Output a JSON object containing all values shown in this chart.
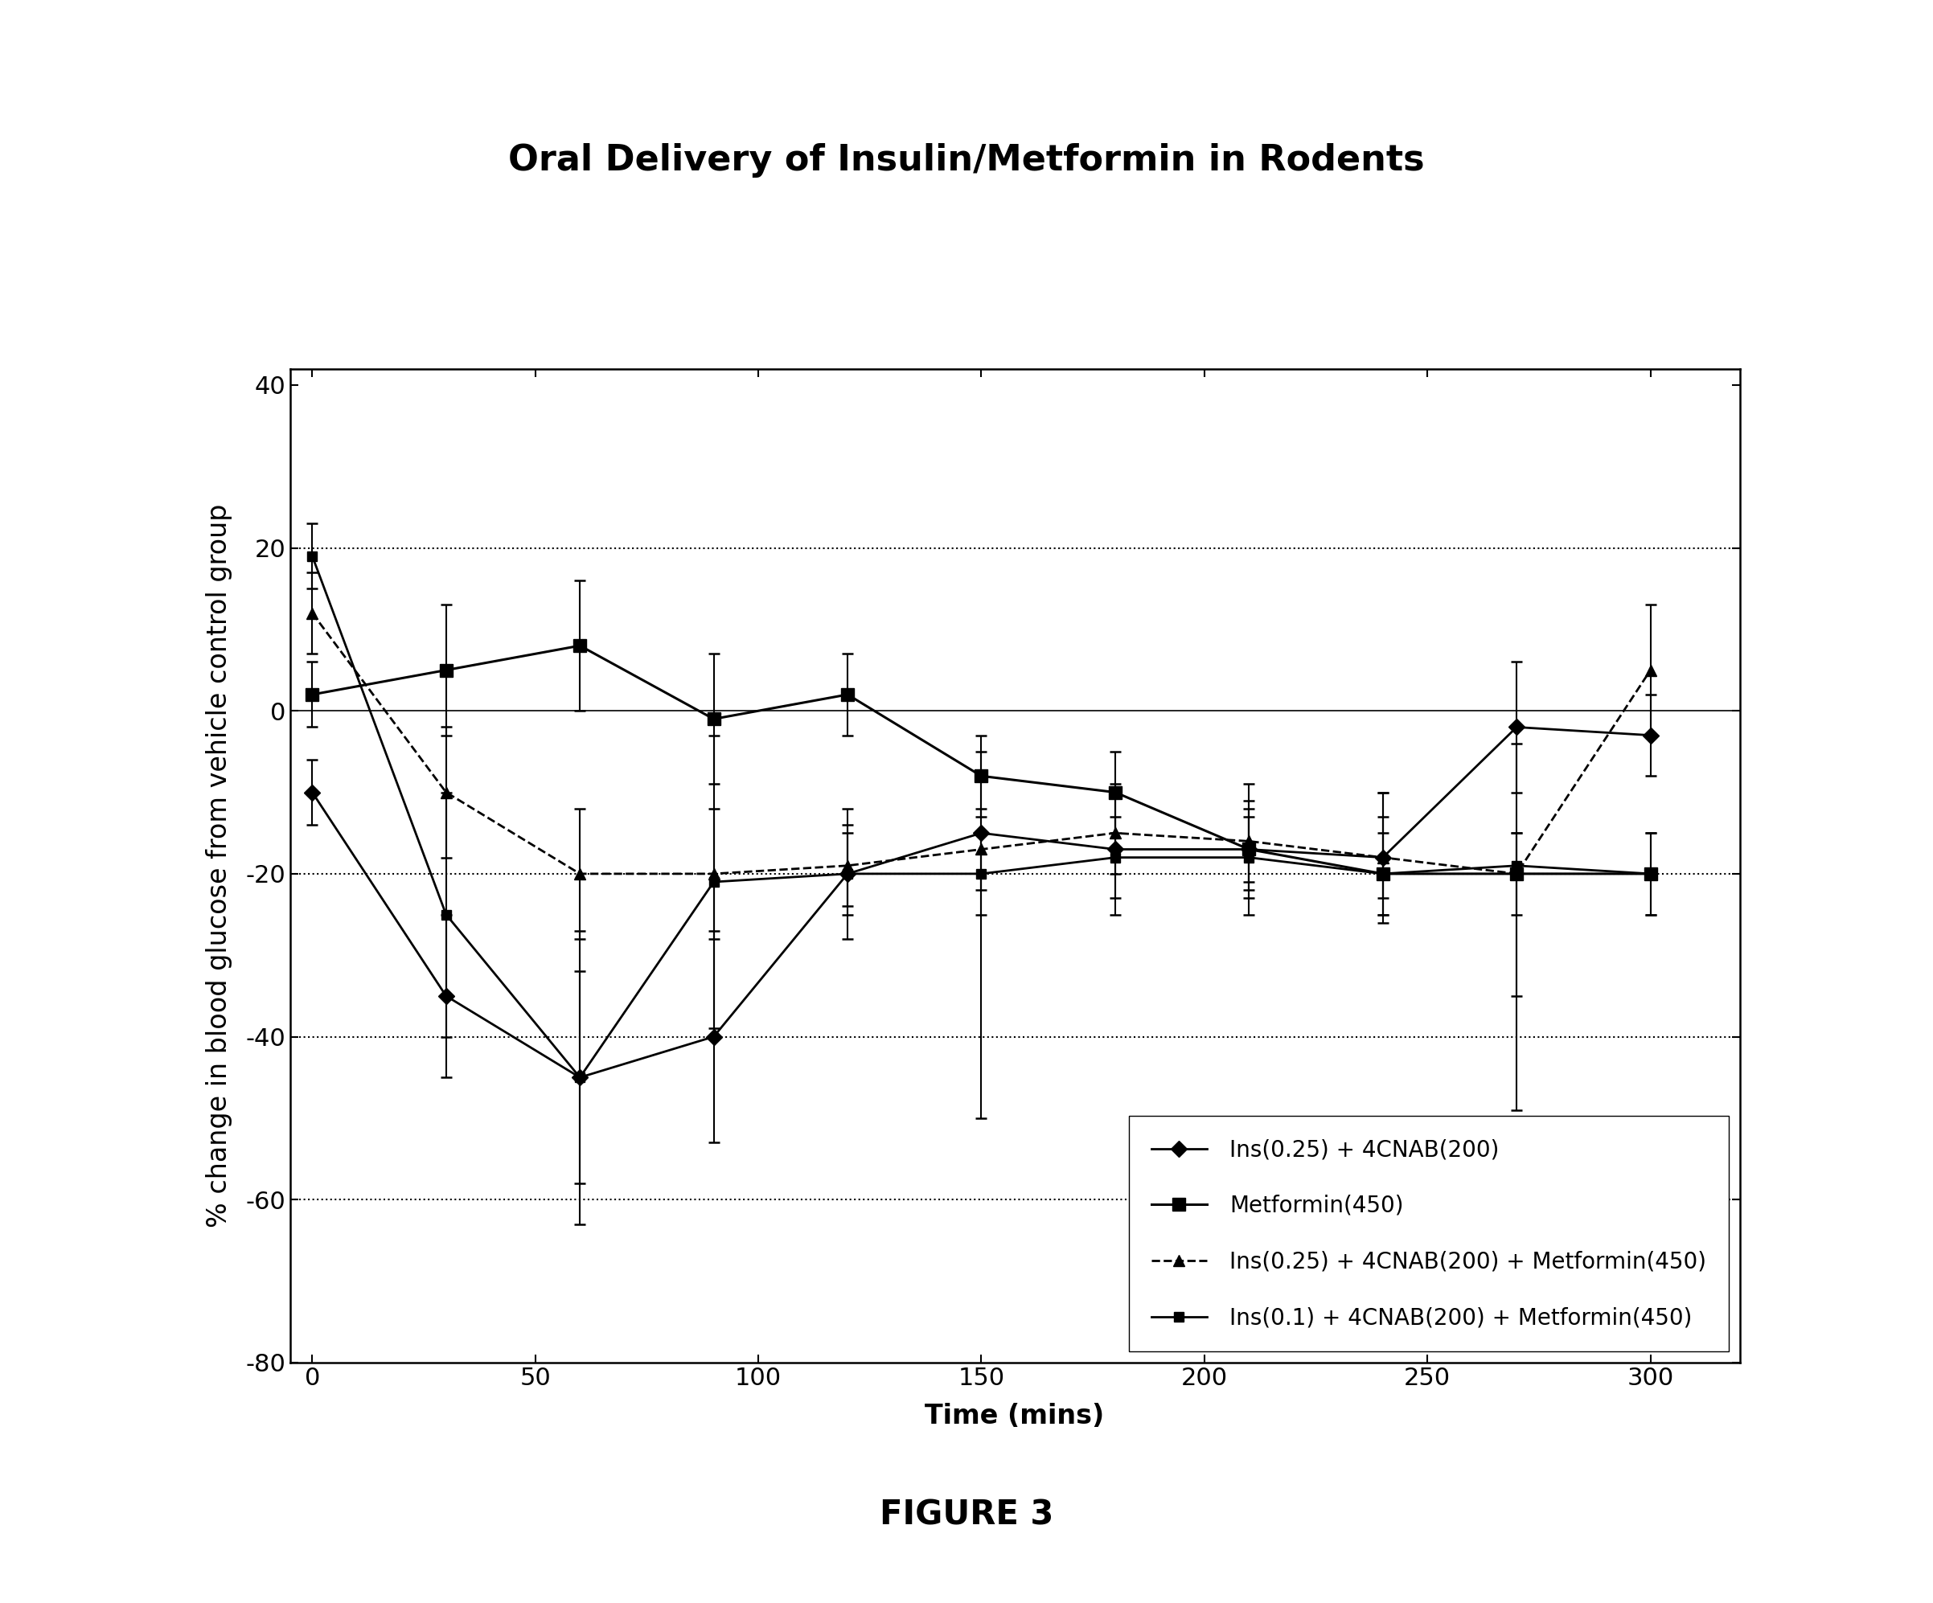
{
  "title": "Oral Delivery of Insulin/Metformin in Rodents",
  "xlabel": "Time (mins)",
  "ylabel": "% change in blood glucose from vehicle control group",
  "figure_label": "FIGURE 3",
  "xlim": [
    -5,
    320
  ],
  "ylim": [
    -80,
    42
  ],
  "yticks": [
    -80,
    -60,
    -40,
    -20,
    0,
    20,
    40
  ],
  "xtick_positions": [
    0,
    50,
    100,
    150,
    200,
    250,
    300
  ],
  "xtick_labels": [
    "0",
    "50",
    "100",
    "150",
    "200",
    "250",
    "300"
  ],
  "dotted_hlines": [
    -60,
    -40,
    -20,
    20
  ],
  "series": [
    {
      "label": "Ins(0.25) + 4CNAB(200)",
      "marker": "D",
      "markersize": 10,
      "linewidth": 2.0,
      "linestyle": "-",
      "x": [
        0,
        30,
        60,
        90,
        120,
        150,
        180,
        210,
        240,
        270,
        300
      ],
      "y": [
        -10,
        -35,
        -45,
        -40,
        -20,
        -15,
        -17,
        -17,
        -18,
        -2,
        -3
      ],
      "yerr_l": [
        4,
        10,
        13,
        13,
        8,
        10,
        8,
        8,
        8,
        8,
        5
      ],
      "yerr_h": [
        4,
        10,
        13,
        13,
        8,
        10,
        8,
        8,
        8,
        8,
        5
      ]
    },
    {
      "label": "Metformin(450)",
      "marker": "s",
      "markersize": 11,
      "linewidth": 2.2,
      "linestyle": "-",
      "x": [
        0,
        30,
        60,
        90,
        120,
        150,
        180,
        210,
        240,
        270,
        300
      ],
      "y": [
        2,
        5,
        8,
        -1,
        2,
        -8,
        -10,
        -17,
        -20,
        -20,
        -20
      ],
      "yerr_l": [
        4,
        8,
        8,
        8,
        5,
        5,
        5,
        5,
        5,
        15,
        5
      ],
      "yerr_h": [
        4,
        8,
        8,
        8,
        5,
        5,
        5,
        5,
        10,
        5,
        5
      ]
    },
    {
      "label": "Ins(0.25) + 4CNAB(200) + Metformin(450)",
      "marker": "^",
      "markersize": 10,
      "linewidth": 2.0,
      "linestyle": "--",
      "x": [
        0,
        30,
        60,
        90,
        120,
        150,
        180,
        210,
        240,
        270,
        300
      ],
      "y": [
        12,
        -10,
        -20,
        -20,
        -19,
        -17,
        -15,
        -16,
        -18,
        -20,
        5
      ],
      "yerr_l": [
        5,
        8,
        8,
        8,
        5,
        5,
        5,
        5,
        5,
        5,
        8
      ],
      "yerr_h": [
        5,
        8,
        8,
        8,
        5,
        5,
        5,
        5,
        5,
        5,
        8
      ]
    },
    {
      "label": "Ins(0.1) + 4CNAB(200) + Metformin(450)",
      "marker": "s",
      "markersize": 8,
      "linewidth": 2.0,
      "linestyle": "-",
      "x": [
        0,
        30,
        60,
        90,
        120,
        150,
        180,
        210,
        240,
        270,
        300
      ],
      "y": [
        19,
        -25,
        -45,
        -21,
        -20,
        -20,
        -18,
        -18,
        -20,
        -19,
        -20
      ],
      "yerr_l": [
        4,
        15,
        18,
        18,
        5,
        30,
        5,
        5,
        5,
        30,
        5
      ],
      "yerr_h": [
        4,
        15,
        18,
        18,
        5,
        5,
        5,
        5,
        5,
        15,
        5
      ]
    }
  ],
  "bg_color": "#ffffff",
  "title_fontsize": 32,
  "axis_label_fontsize": 24,
  "tick_fontsize": 22,
  "legend_fontsize": 20,
  "fig_label_fontsize": 30
}
